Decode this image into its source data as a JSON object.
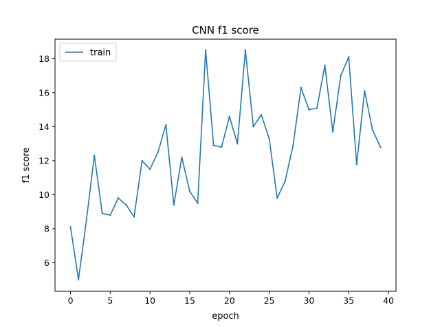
{
  "chart_data": {
    "type": "line",
    "title": "CNN f1 score",
    "xlabel": "epoch",
    "ylabel": "f1 score",
    "xlim": [
      -1.95,
      40.95
    ],
    "ylim": [
      4.32,
      19.15
    ],
    "xticks": [
      0,
      5,
      10,
      15,
      20,
      25,
      30,
      35,
      40
    ],
    "yticks": [
      6,
      8,
      10,
      12,
      14,
      16,
      18
    ],
    "grid": false,
    "legend_position": "upper left",
    "series": [
      {
        "name": "train",
        "color": "#1f77b4",
        "x": [
          0,
          1,
          2,
          3,
          4,
          5,
          6,
          7,
          8,
          9,
          10,
          11,
          12,
          13,
          14,
          15,
          16,
          17,
          18,
          19,
          20,
          21,
          22,
          23,
          24,
          25,
          26,
          27,
          28,
          29,
          30,
          31,
          32,
          33,
          34,
          35,
          36,
          37,
          38,
          39
        ],
        "y": [
          8.1,
          5.0,
          8.5,
          12.3,
          8.9,
          8.8,
          9.8,
          9.4,
          8.7,
          12.0,
          11.5,
          12.5,
          14.1,
          9.4,
          12.2,
          10.2,
          9.5,
          18.5,
          12.9,
          12.8,
          14.6,
          13.0,
          18.5,
          14.0,
          14.7,
          13.3,
          9.8,
          10.8,
          12.9,
          16.3,
          15.0,
          15.1,
          17.6,
          13.7,
          17.0,
          18.1,
          11.8,
          16.1,
          13.8,
          12.8
        ]
      }
    ]
  }
}
